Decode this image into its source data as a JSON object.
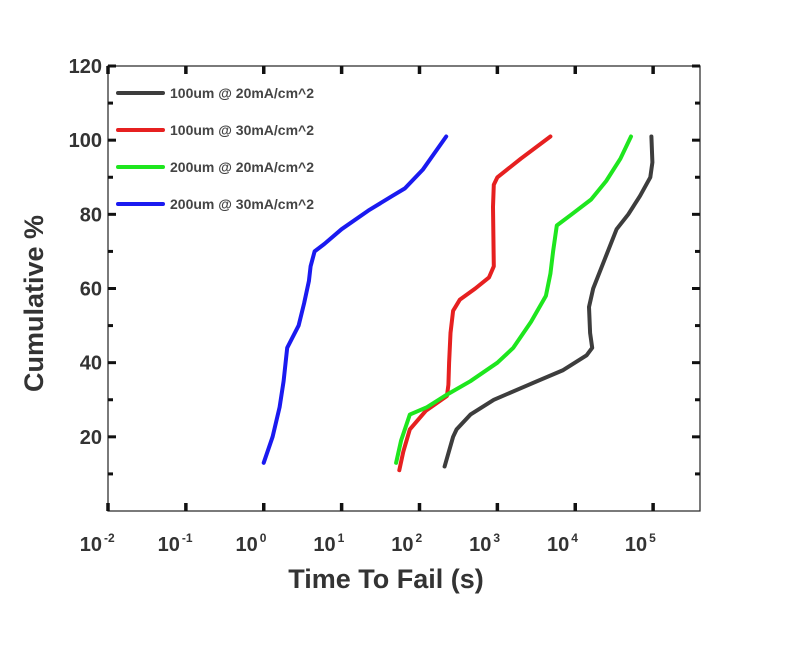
{
  "chart_data": {
    "type": "line",
    "title": "",
    "xlabel": "Time To Fail (s)",
    "ylabel": "Cumulative %",
    "x_scale": "log",
    "xlim": [
      0.01,
      400000
    ],
    "ylim": [
      0,
      120
    ],
    "x_ticks": [
      {
        "value": 0.01,
        "base": "10",
        "exp": "-2"
      },
      {
        "value": 0.1,
        "base": "10",
        "exp": "-1"
      },
      {
        "value": 1,
        "base": "10",
        "exp": "0"
      },
      {
        "value": 10,
        "base": "10",
        "exp": "1"
      },
      {
        "value": 100,
        "base": "10",
        "exp": "2"
      },
      {
        "value": 1000,
        "base": "10",
        "exp": "3"
      },
      {
        "value": 10000,
        "base": "10",
        "exp": "4"
      },
      {
        "value": 100000,
        "base": "10",
        "exp": "5"
      }
    ],
    "y_ticks": [
      {
        "value": 20,
        "label": "20"
      },
      {
        "value": 40,
        "label": "40"
      },
      {
        "value": 60,
        "label": "60"
      },
      {
        "value": 80,
        "label": "80"
      },
      {
        "value": 100,
        "label": "100"
      },
      {
        "value": 120,
        "label": "120"
      }
    ],
    "grid": false,
    "legend_position": "top-left",
    "series": [
      {
        "name": "100um @ 20mA/cm^2",
        "color": "#3d3d3d",
        "points": [
          [
            210,
            12
          ],
          [
            270,
            20
          ],
          [
            300,
            22
          ],
          [
            450,
            26
          ],
          [
            900,
            30
          ],
          [
            2500,
            34
          ],
          [
            7000,
            38
          ],
          [
            14000,
            42
          ],
          [
            16500,
            44
          ],
          [
            15500,
            48
          ],
          [
            15000,
            55
          ],
          [
            17000,
            60
          ],
          [
            24000,
            68
          ],
          [
            34000,
            76
          ],
          [
            48000,
            80
          ],
          [
            68000,
            85
          ],
          [
            92000,
            90
          ],
          [
            98000,
            94
          ],
          [
            95000,
            101
          ]
        ]
      },
      {
        "name": "100um @ 30mA/cm^2",
        "color": "#e62020",
        "points": [
          [
            55,
            11
          ],
          [
            62,
            16
          ],
          [
            75,
            22
          ],
          [
            120,
            27
          ],
          [
            225,
            31
          ],
          [
            235,
            34
          ],
          [
            240,
            40
          ],
          [
            250,
            48
          ],
          [
            270,
            54
          ],
          [
            330,
            57
          ],
          [
            520,
            60
          ],
          [
            780,
            63
          ],
          [
            900,
            66
          ],
          [
            890,
            74
          ],
          [
            880,
            82
          ],
          [
            900,
            88
          ],
          [
            1000,
            90
          ],
          [
            2000,
            95
          ],
          [
            4800,
            101
          ]
        ]
      },
      {
        "name": "200um @ 20mA/cm^2",
        "color": "#1ee61e",
        "points": [
          [
            50,
            13
          ],
          [
            58,
            19
          ],
          [
            75,
            26
          ],
          [
            125,
            28
          ],
          [
            210,
            31
          ],
          [
            450,
            35
          ],
          [
            1000,
            40
          ],
          [
            1600,
            44
          ],
          [
            2700,
            51
          ],
          [
            4200,
            58
          ],
          [
            4800,
            64
          ],
          [
            5200,
            70
          ],
          [
            5800,
            77
          ],
          [
            9000,
            80
          ],
          [
            16000,
            84
          ],
          [
            25000,
            89
          ],
          [
            38000,
            95
          ],
          [
            52000,
            101
          ]
        ]
      },
      {
        "name": "200um @ 30mA/cm^2",
        "color": "#1a1af0",
        "points": [
          [
            1.0,
            13
          ],
          [
            1.3,
            20
          ],
          [
            1.6,
            28
          ],
          [
            1.8,
            35
          ],
          [
            2.0,
            44
          ],
          [
            2.8,
            50
          ],
          [
            3.3,
            56
          ],
          [
            3.8,
            62
          ],
          [
            4.0,
            66
          ],
          [
            4.5,
            70
          ],
          [
            6.0,
            72
          ],
          [
            10,
            76
          ],
          [
            22,
            81
          ],
          [
            45,
            85
          ],
          [
            65,
            87
          ],
          [
            110,
            92
          ],
          [
            220,
            101
          ]
        ]
      }
    ]
  }
}
